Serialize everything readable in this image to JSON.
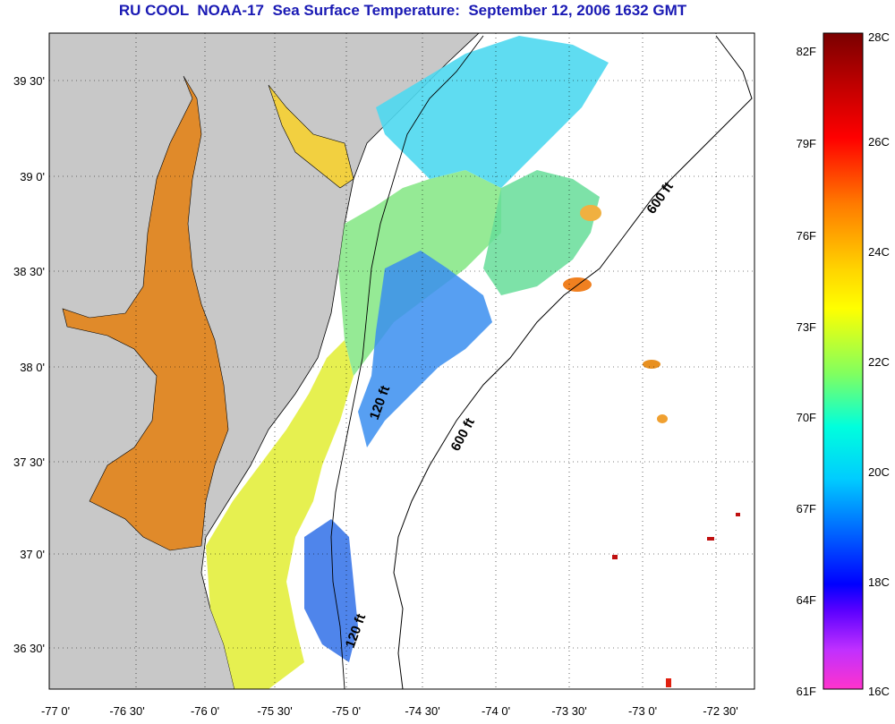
{
  "title": "RU COOL  NOAA-17  Sea Surface Temperature:  September 12, 2006 1632 GMT",
  "map": {
    "lon_labels": [
      "-77 0'",
      "-76 30'",
      "-76 0'",
      "-75 30'",
      "-75 0'",
      "-74 30'",
      "-74 0'",
      "-73 30'",
      "-73 0'",
      "-72 30'"
    ],
    "lat_labels": [
      "39 30'",
      "39 0'",
      "38 30'",
      "38 0'",
      "37 30'",
      "37 0'",
      "36 30'"
    ],
    "contour_labels": [
      "600 ft",
      "600 ft",
      "120 ft",
      "120 ft"
    ],
    "colors": {
      "land": "#c8c8c8",
      "frame": "#000000",
      "grid": "#000000"
    }
  },
  "colorbar": {
    "fahrenheit_labels": [
      "82F",
      "79F",
      "76F",
      "73F",
      "70F",
      "67F",
      "64F",
      "61F"
    ],
    "celsius_labels": [
      "28C",
      "26C",
      "24C",
      "22C",
      "20C",
      "18C",
      "16C"
    ],
    "gradient": [
      "#8b0000",
      "#ff0000",
      "#ff6600",
      "#ffcc00",
      "#ffff00",
      "#80ff80",
      "#00ffff",
      "#00aaff",
      "#0000ff",
      "#8000ff",
      "#ff33cc"
    ]
  }
}
